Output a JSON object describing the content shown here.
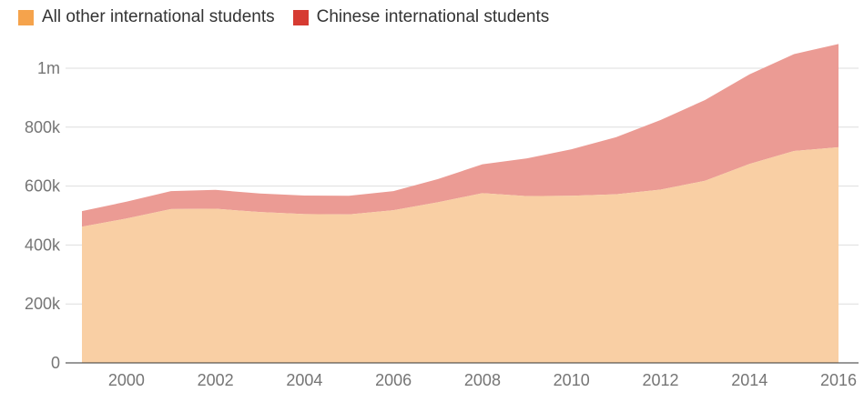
{
  "legend": {
    "items": [
      {
        "label": "All other international students",
        "color": "#f5a34c"
      },
      {
        "label": "Chinese international students",
        "color": "#d63b32"
      }
    ]
  },
  "chart_data": {
    "type": "area",
    "stacked": true,
    "x": [
      1999,
      2000,
      2001,
      2002,
      2003,
      2004,
      2005,
      2006,
      2007,
      2008,
      2009,
      2010,
      2011,
      2012,
      2013,
      2014,
      2015,
      2016
    ],
    "series": [
      {
        "name": "All other international students",
        "color": "#f5a34c",
        "fill": "#f9cfa4",
        "values": [
          462000,
          490000,
          522000,
          523000,
          512000,
          505000,
          504000,
          518000,
          545000,
          576000,
          566000,
          567000,
          572000,
          588000,
          618000,
          675000,
          719000,
          732000
        ]
      },
      {
        "name": "Chinese international students",
        "color": "#d63b32",
        "fill": "#eb9b94",
        "values": [
          53000,
          57000,
          61000,
          64000,
          63000,
          63000,
          63000,
          65000,
          79000,
          98000,
          128000,
          158000,
          194000,
          236000,
          274000,
          304000,
          329000,
          350000
        ]
      }
    ],
    "ylim": [
      0,
      1000000
    ],
    "y_ticks": [
      {
        "value": 0,
        "label": "0"
      },
      {
        "value": 200000,
        "label": "200k"
      },
      {
        "value": 400000,
        "label": "400k"
      },
      {
        "value": 600000,
        "label": "600k"
      },
      {
        "value": 800000,
        "label": "800k"
      },
      {
        "value": 1000000,
        "label": "1m"
      }
    ],
    "x_ticks": [
      {
        "value": 2000,
        "label": "2000"
      },
      {
        "value": 2002,
        "label": "2002"
      },
      {
        "value": 2004,
        "label": "2004"
      },
      {
        "value": 2006,
        "label": "2006"
      },
      {
        "value": 2008,
        "label": "2008"
      },
      {
        "value": 2010,
        "label": "2010"
      },
      {
        "value": 2012,
        "label": "2012"
      },
      {
        "value": 2014,
        "label": "2014"
      },
      {
        "value": 2016,
        "label": "2016"
      }
    ],
    "grid": true,
    "legend_position": "top-left"
  }
}
